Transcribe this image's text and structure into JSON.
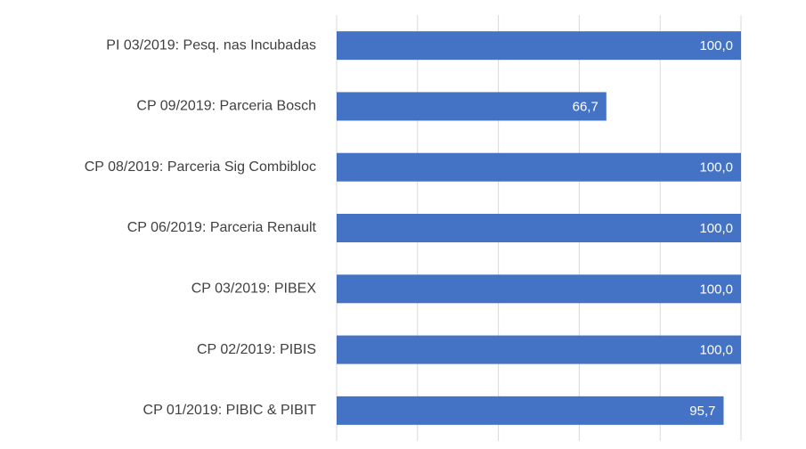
{
  "chart_data": {
    "type": "barh",
    "categories": [
      "PI 03/2019: Pesq. nas Incubadas",
      "CP 09/2019: Parceria Bosch",
      "CP 08/2019: Parceria Sig Combibloc",
      "CP 06/2019: Parceria Renault",
      "CP 03/2019: PIBEX",
      "CP 02/2019: PIBIS",
      "CP 01/2019: PIBIC & PIBIT"
    ],
    "values": [
      100,
      66.7,
      100,
      100,
      100,
      100,
      95.7
    ],
    "value_labels": [
      "100,0",
      "66,7",
      "100,0",
      "100,0",
      "100,0",
      "100,0",
      "95,7"
    ],
    "color": "#4472c4",
    "xlim": [
      0,
      100
    ],
    "xticks": [
      0,
      20,
      40,
      60,
      80,
      100
    ],
    "grid": true
  }
}
